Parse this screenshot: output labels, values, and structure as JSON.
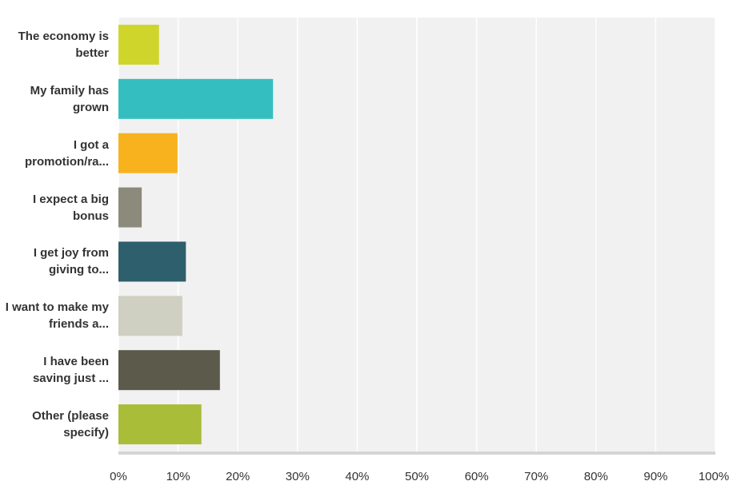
{
  "chart_data": {
    "type": "bar",
    "orientation": "horizontal",
    "categories": [
      "The economy is better",
      "My family has grown",
      "I got a promotion/ra...",
      "I expect a big bonus",
      "I get joy from giving to...",
      "I want to make my friends a...",
      "I have been saving just ...",
      "Other (please specify)"
    ],
    "values": [
      6.8,
      25.9,
      9.9,
      3.9,
      11.3,
      10.7,
      17.0,
      13.9
    ],
    "colors": [
      "#cfd52b",
      "#35bec0",
      "#f8b21d",
      "#8b8a7b",
      "#2e5f6c",
      "#cfcfc2",
      "#5b5a4b",
      "#a9bd38"
    ],
    "xlim": [
      0,
      100
    ],
    "xticks": [
      {
        "value": 0,
        "label": "0%"
      },
      {
        "value": 10,
        "label": "10%"
      },
      {
        "value": 20,
        "label": "20%"
      },
      {
        "value": 30,
        "label": "30%"
      },
      {
        "value": 40,
        "label": "40%"
      },
      {
        "value": 50,
        "label": "50%"
      },
      {
        "value": 60,
        "label": "60%"
      },
      {
        "value": 70,
        "label": "70%"
      },
      {
        "value": 80,
        "label": "80%"
      },
      {
        "value": 90,
        "label": "90%"
      },
      {
        "value": 100,
        "label": "100%"
      }
    ],
    "grid": true
  }
}
